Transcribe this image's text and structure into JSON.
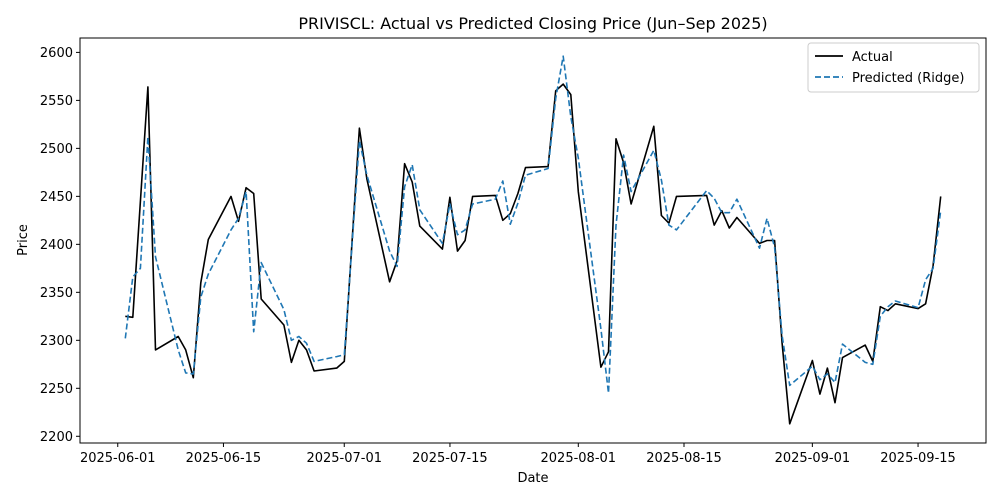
{
  "chart_data": {
    "type": "line",
    "title": "PRIVISCL: Actual vs Predicted Closing Price (Jun–Sep 2025)",
    "xlabel": "Date",
    "ylabel": "Price",
    "xlim": [
      "2025-05-27",
      "2025-09-24"
    ],
    "ylim": [
      2193,
      2615
    ],
    "x_ticks": [
      "2025-06-01",
      "2025-06-15",
      "2025-07-01",
      "2025-07-15",
      "2025-08-01",
      "2025-08-15",
      "2025-09-01",
      "2025-09-15"
    ],
    "y_ticks": [
      2200,
      2250,
      2300,
      2350,
      2400,
      2450,
      2500,
      2550,
      2600
    ],
    "grid": false,
    "legend": "top-right",
    "series": [
      {
        "name": "Actual",
        "color": "#000000",
        "style": "solid",
        "points": [
          [
            "2025-06-02",
            2325
          ],
          [
            "2025-06-03",
            2324
          ],
          [
            "2025-06-05",
            2564
          ],
          [
            "2025-06-06",
            2290
          ],
          [
            "2025-06-09",
            2304
          ],
          [
            "2025-06-10",
            2290
          ],
          [
            "2025-06-11",
            2261
          ],
          [
            "2025-06-12",
            2360
          ],
          [
            "2025-06-13",
            2405
          ],
          [
            "2025-06-16",
            2450
          ],
          [
            "2025-06-17",
            2424
          ],
          [
            "2025-06-18",
            2459
          ],
          [
            "2025-06-19",
            2453
          ],
          [
            "2025-06-20",
            2343
          ],
          [
            "2025-06-23",
            2316
          ],
          [
            "2025-06-24",
            2277
          ],
          [
            "2025-06-25",
            2300
          ],
          [
            "2025-06-26",
            2290
          ],
          [
            "2025-06-27",
            2268
          ],
          [
            "2025-06-30",
            2271
          ],
          [
            "2025-07-01",
            2278
          ],
          [
            "2025-07-03",
            2521
          ],
          [
            "2025-07-04",
            2468
          ],
          [
            "2025-07-07",
            2361
          ],
          [
            "2025-07-08",
            2383
          ],
          [
            "2025-07-09",
            2484
          ],
          [
            "2025-07-10",
            2465
          ],
          [
            "2025-07-11",
            2419
          ],
          [
            "2025-07-14",
            2395
          ],
          [
            "2025-07-15",
            2449
          ],
          [
            "2025-07-16",
            2393
          ],
          [
            "2025-07-17",
            2404
          ],
          [
            "2025-07-18",
            2450
          ],
          [
            "2025-07-21",
            2451
          ],
          [
            "2025-07-22",
            2425
          ],
          [
            "2025-07-23",
            2432
          ],
          [
            "2025-07-24",
            2453
          ],
          [
            "2025-07-25",
            2480
          ],
          [
            "2025-07-28",
            2481
          ],
          [
            "2025-07-29",
            2560
          ],
          [
            "2025-07-30",
            2567
          ],
          [
            "2025-07-31",
            2556
          ],
          [
            "2025-08-01",
            2455
          ],
          [
            "2025-08-04",
            2272
          ],
          [
            "2025-08-05",
            2288
          ],
          [
            "2025-08-06",
            2510
          ],
          [
            "2025-08-07",
            2485
          ],
          [
            "2025-08-08",
            2442
          ],
          [
            "2025-08-11",
            2523
          ],
          [
            "2025-08-12",
            2430
          ],
          [
            "2025-08-13",
            2422
          ],
          [
            "2025-08-14",
            2450
          ],
          [
            "2025-08-18",
            2451
          ],
          [
            "2025-08-19",
            2420
          ],
          [
            "2025-08-20",
            2435
          ],
          [
            "2025-08-21",
            2417
          ],
          [
            "2025-08-22",
            2428
          ],
          [
            "2025-08-25",
            2401
          ],
          [
            "2025-08-26",
            2404
          ],
          [
            "2025-08-27",
            2404
          ],
          [
            "2025-08-28",
            2297
          ],
          [
            "2025-08-29",
            2213
          ],
          [
            "2025-09-01",
            2279
          ],
          [
            "2025-09-02",
            2244
          ],
          [
            "2025-09-03",
            2271
          ],
          [
            "2025-09-04",
            2235
          ],
          [
            "2025-09-05",
            2282
          ],
          [
            "2025-09-08",
            2295
          ],
          [
            "2025-09-09",
            2278
          ],
          [
            "2025-09-10",
            2335
          ],
          [
            "2025-09-11",
            2331
          ],
          [
            "2025-09-12",
            2338
          ],
          [
            "2025-09-15",
            2333
          ],
          [
            "2025-09-16",
            2338
          ],
          [
            "2025-09-17",
            2378
          ],
          [
            "2025-09-18",
            2450
          ]
        ]
      },
      {
        "name": "Predicted (Ridge)",
        "color": "#1f77b4",
        "style": "dashed",
        "points": [
          [
            "2025-06-02",
            2302
          ],
          [
            "2025-06-03",
            2366
          ],
          [
            "2025-06-04",
            2375
          ],
          [
            "2025-06-05",
            2512
          ],
          [
            "2025-06-06",
            2387
          ],
          [
            "2025-06-09",
            2290
          ],
          [
            "2025-06-10",
            2266
          ],
          [
            "2025-06-11",
            2265
          ],
          [
            "2025-06-12",
            2345
          ],
          [
            "2025-06-13",
            2369
          ],
          [
            "2025-06-16",
            2415
          ],
          [
            "2025-06-17",
            2427
          ],
          [
            "2025-06-18",
            2455
          ],
          [
            "2025-06-19",
            2309
          ],
          [
            "2025-06-20",
            2381
          ],
          [
            "2025-06-23",
            2332
          ],
          [
            "2025-06-24",
            2300
          ],
          [
            "2025-06-25",
            2304
          ],
          [
            "2025-06-26",
            2297
          ],
          [
            "2025-06-27",
            2278
          ],
          [
            "2025-06-30",
            2283
          ],
          [
            "2025-07-01",
            2285
          ],
          [
            "2025-07-03",
            2508
          ],
          [
            "2025-07-04",
            2472
          ],
          [
            "2025-07-07",
            2393
          ],
          [
            "2025-07-08",
            2377
          ],
          [
            "2025-07-09",
            2460
          ],
          [
            "2025-07-10",
            2483
          ],
          [
            "2025-07-11",
            2436
          ],
          [
            "2025-07-14",
            2401
          ],
          [
            "2025-07-15",
            2442
          ],
          [
            "2025-07-16",
            2410
          ],
          [
            "2025-07-17",
            2415
          ],
          [
            "2025-07-18",
            2442
          ],
          [
            "2025-07-21",
            2447
          ],
          [
            "2025-07-22",
            2466
          ],
          [
            "2025-07-23",
            2421
          ],
          [
            "2025-07-24",
            2443
          ],
          [
            "2025-07-25",
            2472
          ],
          [
            "2025-07-28",
            2479
          ],
          [
            "2025-07-29",
            2552
          ],
          [
            "2025-07-30",
            2596
          ],
          [
            "2025-07-31",
            2533
          ],
          [
            "2025-08-01",
            2490
          ],
          [
            "2025-08-04",
            2312
          ],
          [
            "2025-08-05",
            2245
          ],
          [
            "2025-08-06",
            2420
          ],
          [
            "2025-08-07",
            2493
          ],
          [
            "2025-08-08",
            2455
          ],
          [
            "2025-08-11",
            2498
          ],
          [
            "2025-08-12",
            2467
          ],
          [
            "2025-08-13",
            2420
          ],
          [
            "2025-08-14",
            2415
          ],
          [
            "2025-08-18",
            2456
          ],
          [
            "2025-08-19",
            2448
          ],
          [
            "2025-08-20",
            2433
          ],
          [
            "2025-08-21",
            2433
          ],
          [
            "2025-08-22",
            2447
          ],
          [
            "2025-08-25",
            2396
          ],
          [
            "2025-08-26",
            2427
          ],
          [
            "2025-08-27",
            2397
          ],
          [
            "2025-08-28",
            2305
          ],
          [
            "2025-08-29",
            2253
          ],
          [
            "2025-09-01",
            2273
          ],
          [
            "2025-09-02",
            2259
          ],
          [
            "2025-09-03",
            2265
          ],
          [
            "2025-09-04",
            2256
          ],
          [
            "2025-09-05",
            2296
          ],
          [
            "2025-09-08",
            2277
          ],
          [
            "2025-09-09",
            2275
          ],
          [
            "2025-09-10",
            2325
          ],
          [
            "2025-09-11",
            2335
          ],
          [
            "2025-09-12",
            2341
          ],
          [
            "2025-09-15",
            2334
          ],
          [
            "2025-09-16",
            2363
          ],
          [
            "2025-09-17",
            2375
          ],
          [
            "2025-09-18",
            2435
          ]
        ]
      }
    ]
  }
}
